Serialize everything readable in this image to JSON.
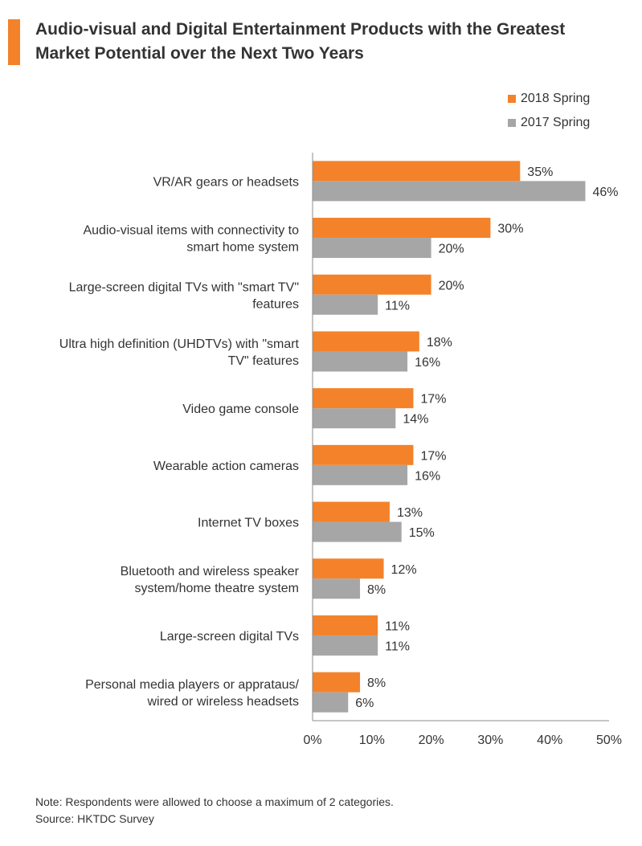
{
  "header": {
    "title_line1": "Audio-visual and Digital Entertainment Products with the Greatest",
    "title_line2": "Market Potential over the Next Two Years"
  },
  "footer": {
    "note": "Note: Respondents were allowed to choose a maximum of 2 categories.",
    "source": "Source: HKTDC Survey"
  },
  "chart_data": {
    "type": "bar",
    "orientation": "horizontal",
    "title": "Audio-visual and Digital Entertainment Products with the Greatest Market Potential over the Next Two Years",
    "xlabel": "",
    "ylabel": "",
    "xlim": [
      0,
      50
    ],
    "x_ticks": [
      "0%",
      "10%",
      "20%",
      "30%",
      "40%",
      "50%"
    ],
    "grid": false,
    "legend_position": "top-right",
    "categories": [
      [
        "VR/AR gears or headsets"
      ],
      [
        "Audio-visual items with connectivity to",
        "smart home system"
      ],
      [
        "Large-screen digital TVs with \"smart TV\"",
        "features"
      ],
      [
        "Ultra high definition (UHDTVs) with \"smart",
        "TV\" features"
      ],
      [
        "Video game console"
      ],
      [
        "Wearable action cameras"
      ],
      [
        "Internet TV boxes"
      ],
      [
        "Bluetooth and wireless speaker",
        "system/home theatre system"
      ],
      [
        "Large-screen digital TVs"
      ],
      [
        "Personal media players or apprataus/",
        "wired or wireless headsets"
      ]
    ],
    "series": [
      {
        "name": "2018 Spring",
        "color": "#f4822a",
        "values": [
          35,
          30,
          20,
          18,
          17,
          17,
          13,
          12,
          11,
          8
        ]
      },
      {
        "name": "2017 Spring",
        "color": "#a6a6a6",
        "values": [
          46,
          20,
          11,
          16,
          14,
          16,
          15,
          8,
          11,
          6
        ]
      }
    ],
    "value_suffix": "%"
  }
}
